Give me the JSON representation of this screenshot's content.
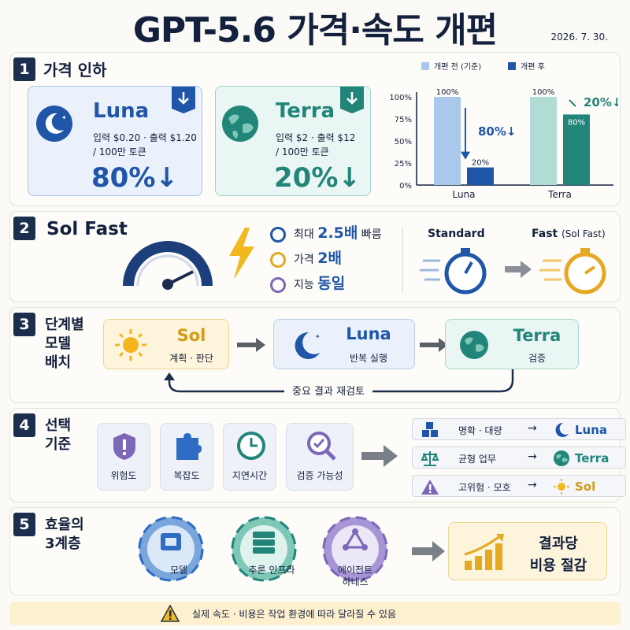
{
  "header": {
    "title": "GPT-5.6 가격·속도 개편",
    "date": "2026. 7. 30."
  },
  "section1": {
    "number": "1",
    "title": "가격 인하",
    "luna": {
      "name": "Luna",
      "price_line1": "입력 $0.20 · 출력 $1.20",
      "price_line2": "/ 100만 토큰",
      "change": "80%↓"
    },
    "terra": {
      "name": "Terra",
      "price_line1": "입력 $2 · 출력 $12",
      "price_line2": "/ 100만 토큰",
      "change": "20%↓"
    }
  },
  "chart_data": {
    "type": "bar",
    "categories": [
      "Luna",
      "Terra"
    ],
    "series": [
      {
        "name": "개편 전 (기준)",
        "values": [
          100,
          100
        ]
      },
      {
        "name": "개편 후",
        "values": [
          20,
          80
        ]
      }
    ],
    "yticks": [
      "100%",
      "75%",
      "50%",
      "25%",
      "0%"
    ],
    "ylim": [
      0,
      100
    ],
    "data_labels": {
      "before": [
        "100%",
        "100%"
      ],
      "after": [
        "20%",
        "80%"
      ]
    },
    "annotations": [
      "80%↓",
      "20%↓"
    ],
    "legend_position": "top",
    "colors": {
      "before_luna": "#a9c8ec",
      "after_luna": "#1f56a8",
      "before_terra": "#b0dcd5",
      "after_terra": "#21857a"
    }
  },
  "section2": {
    "number": "2",
    "title": "Sol Fast",
    "features": [
      {
        "pre": "최대 ",
        "hl": "2.5배",
        "post": " 빠름",
        "icon": "stopwatch-icon"
      },
      {
        "pre": "가격 ",
        "hl": "2배",
        "post": "",
        "icon": "dollar-coin-icon"
      },
      {
        "pre": "지능 ",
        "hl": "동일",
        "post": "",
        "icon": "brain-icon"
      }
    ],
    "standard_label": "Standard",
    "fast_label": "Fast",
    "fast_sub": "(Sol Fast)"
  },
  "section3": {
    "number": "3",
    "title_lines": [
      "단계별",
      "모델",
      "배치"
    ],
    "sol": {
      "name": "Sol",
      "desc": "계획 · 판단"
    },
    "luna": {
      "name": "Luna",
      "desc": "반복 실행"
    },
    "terra": {
      "name": "Terra",
      "desc": "검증"
    },
    "feedback": "중요 결과 재검토"
  },
  "section4": {
    "number": "4",
    "title_lines": [
      "선택",
      "기준"
    ],
    "criteria": [
      "위험도",
      "복잡도",
      "지연시간",
      "검증 가능성"
    ],
    "rules": [
      {
        "key": "명확 · 대량",
        "arrow": "→",
        "model": "Luna"
      },
      {
        "key": "균형  업무",
        "arrow": "→",
        "model": "Terra"
      },
      {
        "key": "고위험 · 모호",
        "arrow": "→",
        "model": "Sol"
      }
    ]
  },
  "section5": {
    "number": "5",
    "title_lines": [
      "효율의",
      "3계층"
    ],
    "gears": [
      "모델",
      "추론 인프라",
      "에이전트\n하네스"
    ],
    "result_line1": "결과당",
    "result_line2": "비용 절감"
  },
  "footer": {
    "note": "실제 속도 · 비용은 작업 환경에 따라 달라질 수 있음"
  },
  "colors": {
    "navy": "#14213d",
    "blue": "#1f56a8",
    "teal": "#21857a",
    "gold": "#d7a21f"
  }
}
